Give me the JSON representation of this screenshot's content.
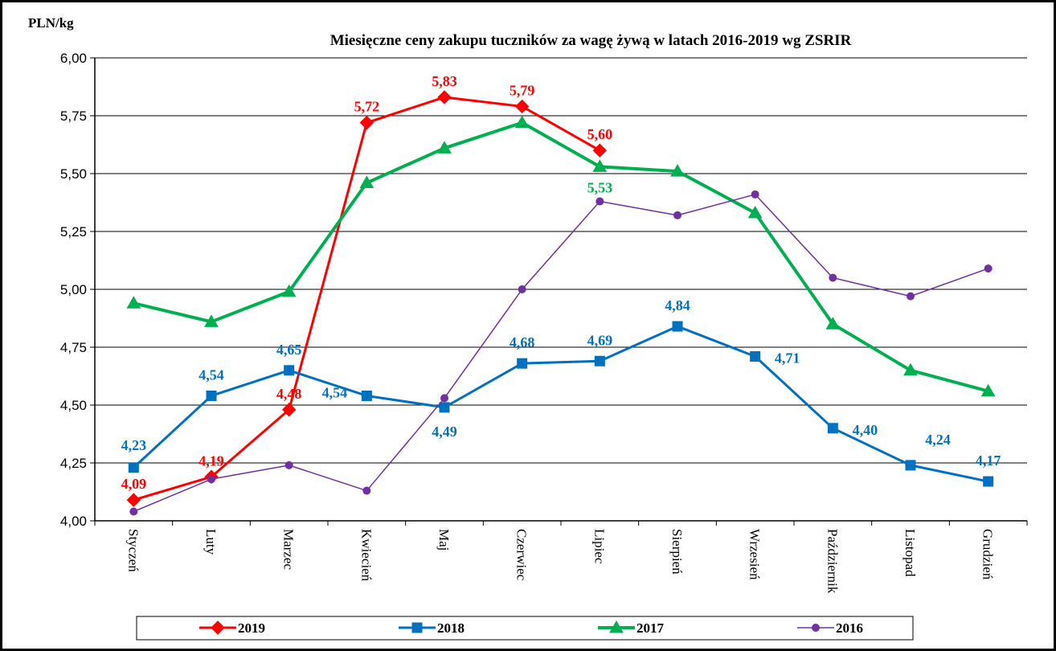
{
  "chart_data": {
    "type": "line",
    "title": "Miesięczne ceny zakupu tuczników za wagę żywą w latach 2016-2019  wg ZSRIR",
    "y_label": "PLN/kg",
    "categories": [
      "Styczeń",
      "Luty",
      "Marzec",
      "Kwiecień",
      "Maj",
      "Czerwiec",
      "Lipiec",
      "Sierpień",
      "Wrzesień",
      "Październik",
      "Listopad",
      "Grudzień"
    ],
    "ylim": [
      4.0,
      6.0
    ],
    "yticks": [
      {
        "value": 4.0,
        "label": "4,00"
      },
      {
        "value": 4.25,
        "label": "4,25"
      },
      {
        "value": 4.5,
        "label": "4,50"
      },
      {
        "value": 4.75,
        "label": "4,75"
      },
      {
        "value": 5.0,
        "label": "5,00"
      },
      {
        "value": 5.25,
        "label": "5,25"
      },
      {
        "value": 5.5,
        "label": "5,50"
      },
      {
        "value": 5.75,
        "label": "5,75"
      },
      {
        "value": 6.0,
        "label": "6,00"
      }
    ],
    "grid": true,
    "legend": "bottom",
    "series": [
      {
        "name": "2019",
        "color": "#ff0000",
        "marker": "diamond",
        "line_width": 3,
        "values": [
          4.09,
          4.19,
          4.48,
          5.72,
          5.83,
          5.79,
          5.6,
          null,
          null,
          null,
          null,
          null
        ],
        "value_labels": [
          "4,09",
          "4,19",
          "4,48",
          "5,72",
          "5,83",
          "5,79",
          "5,60",
          null,
          null,
          null,
          null,
          null
        ]
      },
      {
        "name": "2018",
        "color": "#0070c0",
        "marker": "square",
        "line_width": 3,
        "values": [
          4.23,
          4.54,
          4.65,
          4.54,
          4.49,
          4.68,
          4.69,
          4.84,
          4.71,
          4.4,
          4.24,
          4.17
        ],
        "value_labels": [
          "4,23",
          "4,54",
          "4,65",
          "4,54",
          "4,49",
          "4,68",
          "4,69",
          "4,84",
          "4,71",
          "4,40",
          "4,24",
          "4,17"
        ]
      },
      {
        "name": "2017",
        "color": "#00b050",
        "marker": "triangle",
        "line_width": 4,
        "values": [
          4.94,
          4.86,
          4.99,
          5.46,
          5.61,
          5.72,
          5.53,
          5.51,
          5.33,
          4.85,
          4.65,
          4.56
        ],
        "value_labels": [
          null,
          null,
          null,
          null,
          null,
          null,
          "5,53",
          null,
          null,
          null,
          null,
          null
        ]
      },
      {
        "name": "2016",
        "color": "#7030a0",
        "marker": "circle",
        "line_width": 1.5,
        "values": [
          4.04,
          4.18,
          4.24,
          4.13,
          4.53,
          5.0,
          5.38,
          5.32,
          5.41,
          5.05,
          4.97,
          5.09
        ]
      }
    ]
  }
}
